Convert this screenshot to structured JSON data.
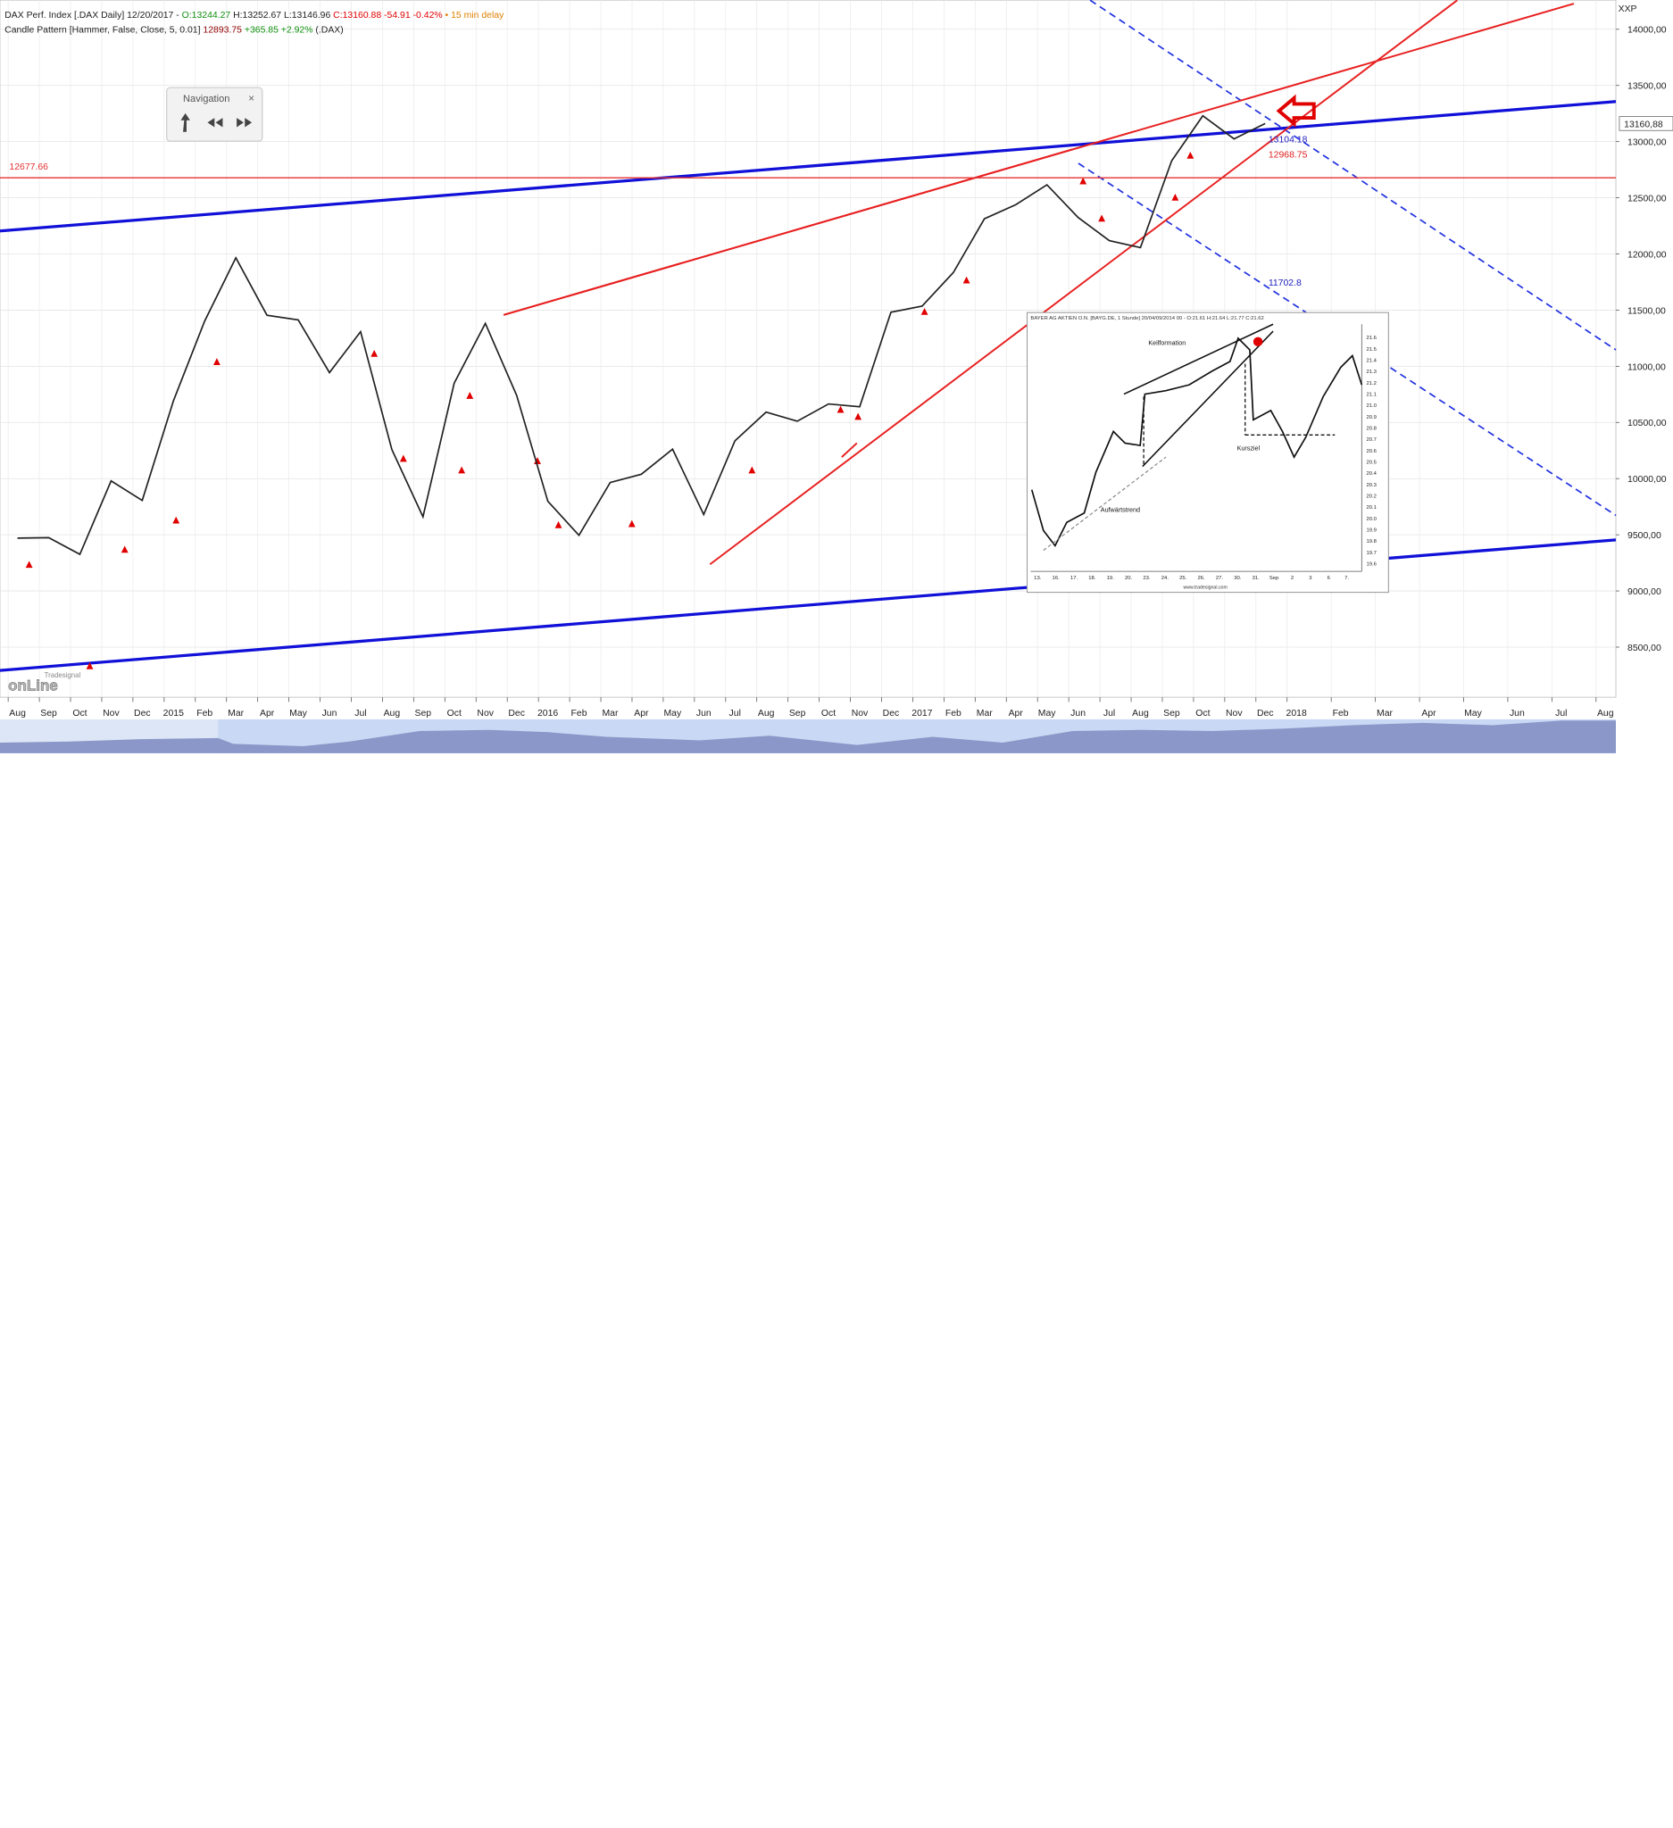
{
  "chart_data": {
    "type": "line",
    "info": {
      "symbol": "DAX Perf. Index [.DAX Daily]",
      "date": "12/20/2017 -",
      "open": "O:13244.27",
      "high": "H:13252.67",
      "low": "L:13146.96",
      "close": "C:13160.88",
      "change": "-54.91",
      "change_pct": "-0.42%",
      "delay": "• 15 min delay",
      "indicator": "Candle Pattern [Hammer, False, Close, 5, 0.01]",
      "indicator_value": "12893.75",
      "indicator_change": "+365.85",
      "indicator_change_pct": "+2.92%",
      "indicator_symbol": "(.DAX)"
    },
    "axis_code": "XXP",
    "categories": [
      "Aug",
      "Sep",
      "Oct",
      "Nov",
      "Dec",
      "2015",
      "Feb",
      "Mar",
      "Apr",
      "May",
      "Jun",
      "Jul",
      "Aug",
      "Sep",
      "Oct",
      "Nov",
      "Dec",
      "2016",
      "Feb",
      "Mar",
      "Apr",
      "May",
      "Jun",
      "Jul",
      "Aug",
      "Sep",
      "Oct",
      "Nov",
      "Dec",
      "2017",
      "Feb",
      "Mar",
      "Apr",
      "May",
      "Jun",
      "Jul",
      "Aug",
      "Sep",
      "Oct",
      "Nov",
      "Dec",
      "2018",
      "Feb",
      "Mar",
      "Apr",
      "May",
      "Jun",
      "Jul",
      "Aug"
    ],
    "series": [
      {
        "color": "#222222",
        "values": [
          9470,
          9474,
          9326,
          9980,
          9805,
          10694,
          11401,
          11966,
          11454,
          11413,
          10944,
          11308,
          10259,
          9660,
          10850,
          11382,
          10743,
          9798,
          9495,
          9965,
          10039,
          10262,
          9680,
          10337,
          10592,
          10511,
          10665,
          10640,
          11481,
          11535,
          11834,
          12313,
          12438,
          12615,
          12325,
          12118,
          12056,
          12829,
          13230,
          13024,
          13161,
          null,
          null,
          null,
          null,
          null,
          null,
          null,
          null
        ]
      }
    ],
    "ylim": [
      8054,
      14259
    ],
    "yticks": [
      {
        "value": 8500,
        "label": "8500,00"
      },
      {
        "value": 9000,
        "label": "9000,00"
      },
      {
        "value": 9500,
        "label": "9500,00"
      },
      {
        "value": 10000,
        "label": "10000,00"
      },
      {
        "value": 10500,
        "label": "10500,00"
      },
      {
        "value": 11000,
        "label": "11000,00"
      },
      {
        "value": 11500,
        "label": "11500,00"
      },
      {
        "value": 12000,
        "label": "12000,00"
      },
      {
        "value": 12500,
        "label": "12500,00"
      },
      {
        "value": 13000,
        "label": "13000,00"
      },
      {
        "value": 13500,
        "label": "13500,00"
      },
      {
        "value": 14000,
        "label": "14000,00"
      }
    ],
    "grid": true,
    "hline": {
      "value": 12677.66,
      "label": "12677.66",
      "color": "#e53030"
    },
    "last_price": {
      "value": 13160.88,
      "label": "13160,88"
    },
    "annotations": [
      {
        "text": "11702.8",
        "color": "#2020c0"
      },
      {
        "text": "13104.18",
        "color": "#2020c0"
      },
      {
        "text": "12968.75",
        "color": "#e02020"
      }
    ]
  },
  "navigation": {
    "title": "Navigation"
  },
  "inset": {
    "title": "BAYER AG AKTIEN O.N. [BAYG.DE, 1 Stunde] 20/04/09/2014 00 - O:21.61 H:21.64 L:21.77 C:21.62",
    "labels": [
      "Keilformation",
      "Kursziel",
      "Aufwärtstrend"
    ],
    "yticks": [
      "21.6",
      "21.5",
      "21.4",
      "21.3",
      "21.2",
      "21.1",
      "21.0",
      "20.9",
      "20.8",
      "20.7",
      "20.6",
      "20.5",
      "20.4",
      "20.3",
      "20.2",
      "20.1",
      "20.0",
      "19.9",
      "19.8",
      "19.7",
      "19.6"
    ],
    "xticks": [
      "13.",
      "16.",
      "17.",
      "18.",
      "19.",
      "20.",
      "23.",
      "24.",
      "25.",
      "26.",
      "27.",
      "30.",
      "31.",
      "Sep",
      "2",
      "3",
      "6",
      "7."
    ],
    "source": "www.tradesignal.com"
  },
  "logo": {
    "brand": "Tradesignal",
    "product": "onLine"
  }
}
